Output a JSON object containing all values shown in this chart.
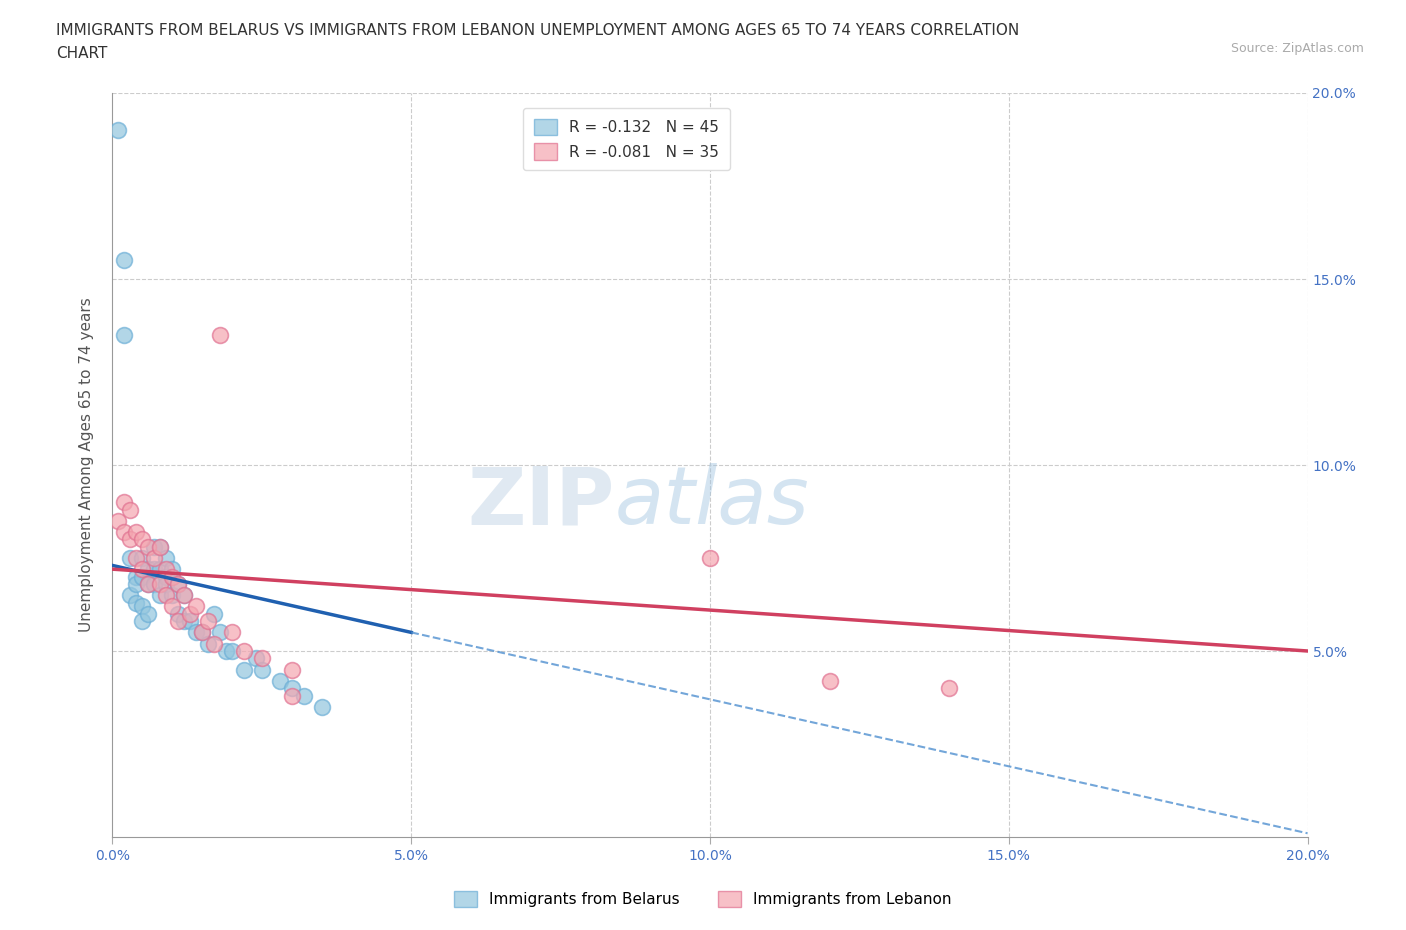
{
  "title_line1": "IMMIGRANTS FROM BELARUS VS IMMIGRANTS FROM LEBANON UNEMPLOYMENT AMONG AGES 65 TO 74 YEARS CORRELATION",
  "title_line2": "CHART",
  "source": "Source: ZipAtlas.com",
  "ylabel": "Unemployment Among Ages 65 to 74 years",
  "xlim": [
    0.0,
    0.2
  ],
  "ylim": [
    0.0,
    0.2
  ],
  "xticks": [
    0.0,
    0.05,
    0.1,
    0.15,
    0.2
  ],
  "yticks": [
    0.0,
    0.05,
    0.1,
    0.15,
    0.2
  ],
  "ytick_labels_right": [
    "",
    "5.0%",
    "10.0%",
    "15.0%",
    "20.0%"
  ],
  "xtick_labels": [
    "0.0%",
    "5.0%",
    "10.0%",
    "15.0%",
    "20.0%"
  ],
  "grid_color": "#cccccc",
  "background_color": "#ffffff",
  "belarus_color": "#92c5de",
  "lebanon_color": "#f4a6b0",
  "belarus_edge_color": "#6baed6",
  "lebanon_edge_color": "#e07090",
  "legend_R_belarus": "R = -0.132",
  "legend_N_belarus": "N = 45",
  "legend_R_lebanon": "R = -0.081",
  "legend_N_lebanon": "N = 35",
  "belarus_trend_x0": 0.0,
  "belarus_trend_y0": 0.073,
  "belarus_trend_x1": 0.05,
  "belarus_trend_y1": 0.055,
  "belarus_trend_solid_end": 0.05,
  "belarus_trend_dashed_end": 0.2,
  "lebanon_trend_x0": 0.0,
  "lebanon_trend_y0": 0.072,
  "lebanon_trend_x1": 0.2,
  "lebanon_trend_y1": 0.05,
  "belarus_x": [
    0.001,
    0.002,
    0.002,
    0.003,
    0.003,
    0.004,
    0.004,
    0.004,
    0.005,
    0.005,
    0.005,
    0.005,
    0.006,
    0.006,
    0.006,
    0.007,
    0.007,
    0.007,
    0.008,
    0.008,
    0.008,
    0.009,
    0.009,
    0.009,
    0.01,
    0.01,
    0.011,
    0.011,
    0.012,
    0.012,
    0.013,
    0.014,
    0.015,
    0.016,
    0.017,
    0.018,
    0.019,
    0.02,
    0.022,
    0.024,
    0.025,
    0.028,
    0.03,
    0.032,
    0.035
  ],
  "belarus_y": [
    0.19,
    0.155,
    0.135,
    0.075,
    0.065,
    0.07,
    0.068,
    0.063,
    0.075,
    0.07,
    0.062,
    0.058,
    0.072,
    0.068,
    0.06,
    0.078,
    0.072,
    0.068,
    0.078,
    0.072,
    0.065,
    0.075,
    0.07,
    0.068,
    0.072,
    0.065,
    0.068,
    0.06,
    0.065,
    0.058,
    0.058,
    0.055,
    0.055,
    0.052,
    0.06,
    0.055,
    0.05,
    0.05,
    0.045,
    0.048,
    0.045,
    0.042,
    0.04,
    0.038,
    0.035
  ],
  "lebanon_x": [
    0.001,
    0.002,
    0.002,
    0.003,
    0.003,
    0.004,
    0.004,
    0.005,
    0.005,
    0.006,
    0.006,
    0.007,
    0.008,
    0.008,
    0.009,
    0.009,
    0.01,
    0.01,
    0.011,
    0.011,
    0.012,
    0.013,
    0.014,
    0.015,
    0.016,
    0.017,
    0.018,
    0.02,
    0.022,
    0.025,
    0.03,
    0.03,
    0.1,
    0.12,
    0.14
  ],
  "lebanon_y": [
    0.085,
    0.09,
    0.082,
    0.088,
    0.08,
    0.082,
    0.075,
    0.08,
    0.072,
    0.078,
    0.068,
    0.075,
    0.078,
    0.068,
    0.072,
    0.065,
    0.07,
    0.062,
    0.068,
    0.058,
    0.065,
    0.06,
    0.062,
    0.055,
    0.058,
    0.052,
    0.135,
    0.055,
    0.05,
    0.048,
    0.045,
    0.038,
    0.075,
    0.042,
    0.04
  ]
}
